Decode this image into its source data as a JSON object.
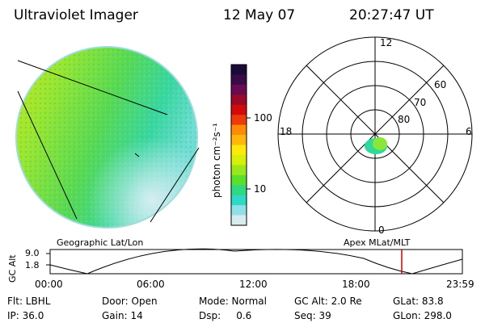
{
  "header": {
    "title": "Ultraviolet Imager",
    "date": "12 May 07",
    "time": "20:27:47 UT"
  },
  "colorbar": {
    "label": "photon cm⁻²s⁻¹",
    "ticks": [
      "100",
      "10"
    ],
    "colors": [
      "#1a0a3a",
      "#3a0a48",
      "#6a0a50",
      "#9a0a2a",
      "#d40a0a",
      "#ee3a0a",
      "#ff8a0a",
      "#ffb80a",
      "#ffe80a",
      "#d6f00a",
      "#9ae81a",
      "#5ae02a",
      "#30d880",
      "#30d8c8",
      "#90e0e8",
      "#d8ecf0"
    ]
  },
  "polar": {
    "top_label": "12",
    "bottom_label": "0",
    "left_label": "18",
    "right_label": "6",
    "lat_labels": [
      "60",
      "70",
      "80"
    ]
  },
  "orbit": {
    "left_caption": "Geographic Lat/Lon",
    "right_caption": "Apex MLat/MLT",
    "axis_label": "GC Alt",
    "y_ticks": [
      "9.0",
      "1.8"
    ],
    "x_ticks": [
      "00:00",
      "06:00",
      "12:00",
      "18:00",
      "23:59"
    ],
    "marker_time_fraction": 0.853,
    "marker_color": "#cc0000"
  },
  "info": {
    "row1": [
      "Flt: LBHL",
      "Door: Open",
      "Mode: Normal",
      "GC Alt: 2.0 Re",
      "GLat:  83.8"
    ],
    "row2": [
      "IP: 36.0",
      "Gain: 14",
      "Dsp:     0.6",
      "Seq: 39",
      "GLon: 298.0"
    ]
  },
  "image_colors": {
    "green": "#66d94a",
    "yellowgreen": "#b7e61d",
    "cyan": "#32d9c2",
    "paleblue": "#c9ecf2"
  }
}
